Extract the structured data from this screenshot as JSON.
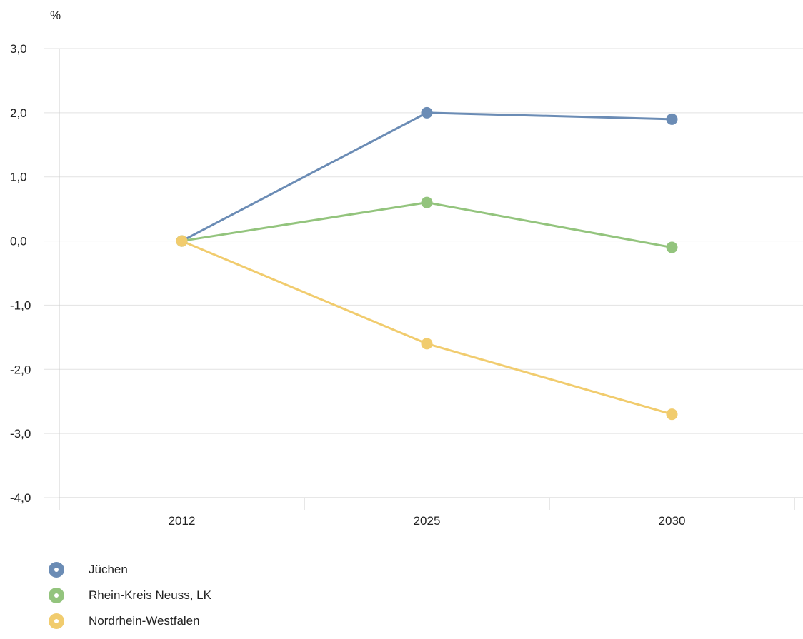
{
  "chart_data": {
    "type": "line",
    "ylabel": "%",
    "categories": [
      "2012",
      "2025",
      "2030"
    ],
    "ylim": [
      -4.0,
      3.0
    ],
    "yticks": [
      3.0,
      2.0,
      1.0,
      0.0,
      -1.0,
      -2.0,
      -3.0,
      -4.0
    ],
    "ytick_labels": [
      "3,0",
      "2,0",
      "1,0",
      "0,0",
      "-1,0",
      "-2,0",
      "-3,0",
      "-4,0"
    ],
    "grid": true,
    "legend_position": "bottom-left",
    "series": [
      {
        "name": "Jüchen",
        "color": "#6b8cb5",
        "values": [
          0.0,
          2.0,
          1.9
        ]
      },
      {
        "name": "Rhein-Kreis Neuss, LK",
        "color": "#93c47d",
        "values": [
          0.0,
          0.6,
          -0.1
        ]
      },
      {
        "name": "Nordrhein-Westfalen",
        "color": "#f1cc6e",
        "values": [
          0.0,
          -1.6,
          -2.7
        ]
      }
    ]
  }
}
